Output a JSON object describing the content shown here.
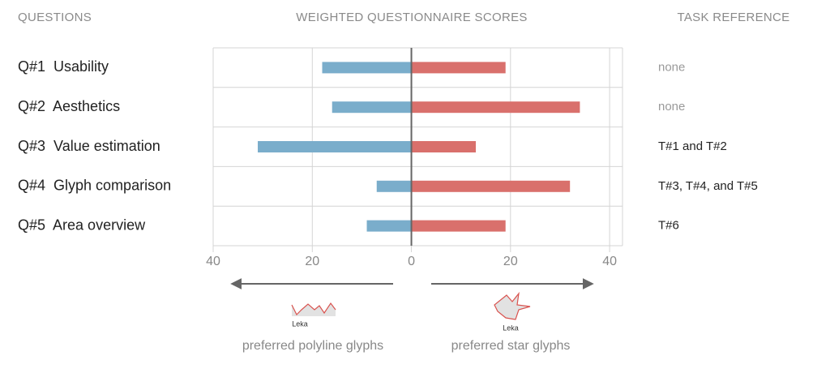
{
  "chart_data": {
    "type": "diverging-bar",
    "headers": {
      "questions": "QUESTIONS",
      "scores": "WEIGHTED QUESTIONNAIRE SCORES",
      "task_reference": "TASK REFERENCE"
    },
    "categories": [
      "Q#1  Usability",
      "Q#2  Aesthetics",
      "Q#3  Value estimation",
      "Q#4  Glyph comparison",
      "Q#5  Area overview"
    ],
    "task_reference": [
      "none",
      "none",
      "T#1 and T#2",
      "T#3, T#4, and T#5",
      "T#6"
    ],
    "task_reference_colors": [
      "#9a9a9a",
      "#9a9a9a",
      "#222222",
      "#222222",
      "#222222"
    ],
    "series": [
      {
        "name": "preferred polyline glyphs",
        "color": "#7aadcb",
        "values": [
          -18,
          -16,
          -31,
          -7,
          -9
        ]
      },
      {
        "name": "preferred star glyphs",
        "color": "#d9706c",
        "values": [
          19,
          34,
          13,
          32,
          19
        ]
      }
    ],
    "glyph_examples": [
      {
        "label": "Leka"
      },
      {
        "label": "Leka"
      }
    ],
    "xlim": [
      -40,
      42.6
    ],
    "xticks": [
      {
        "value": -40,
        "label": "40"
      },
      {
        "value": -20,
        "label": "20"
      },
      0,
      20,
      40
    ],
    "grid": true
  }
}
